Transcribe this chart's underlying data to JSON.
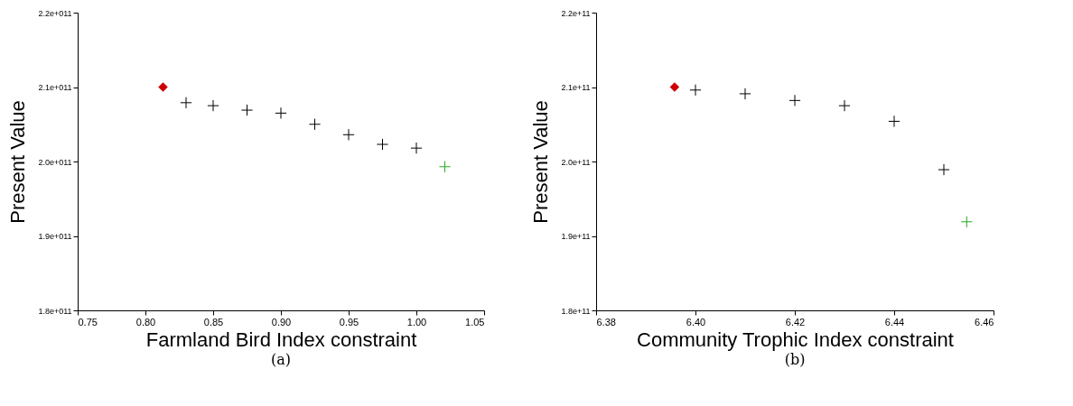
{
  "chart_data": [
    {
      "type": "scatter",
      "xlabel": "Farmland Bird Index constraint",
      "ylabel": "Present Value",
      "annotations": [
        "(a)"
      ],
      "grid": false,
      "xlim": [
        0.75,
        1.05
      ],
      "xticks": [
        {
          "value": 0.75,
          "label": "0.75"
        },
        {
          "value": 0.8,
          "label": "0.80"
        },
        {
          "value": 0.85,
          "label": "0.85"
        },
        {
          "value": 0.9,
          "label": "0.90"
        },
        {
          "value": 0.95,
          "label": "0.95"
        },
        {
          "value": 1.0,
          "label": "1.00"
        },
        {
          "value": 1.05,
          "label": "1.05"
        }
      ],
      "ylim": [
        180000000000,
        220000000000
      ],
      "yticks": [
        {
          "value": 180000000000,
          "label": "1.8e+011"
        },
        {
          "value": 190000000000,
          "label": "1.9e+011"
        },
        {
          "value": 200000000000,
          "label": "2.0e+011"
        },
        {
          "value": 210000000000,
          "label": "2.1e+011"
        },
        {
          "value": 220000000000,
          "label": "2.2e+011"
        }
      ],
      "series": [
        {
          "color": "#cc0000",
          "marker": "diamond",
          "x": [
            0.813
          ],
          "values": [
            210000000000
          ]
        },
        {
          "color": "#000000",
          "marker": "cross",
          "x": [
            0.83,
            0.85,
            0.875,
            0.9,
            0.925,
            0.95,
            0.975,
            1.0
          ],
          "values": [
            207900000000,
            207500000000,
            206900000000,
            206500000000,
            205000000000,
            203600000000,
            202300000000,
            201800000000
          ]
        },
        {
          "color": "#22aa22",
          "marker": "cross",
          "x": [
            1.021
          ],
          "values": [
            199300000000
          ]
        }
      ]
    },
    {
      "type": "scatter",
      "xlabel": "Community Trophic Index constraint",
      "ylabel": "Present Value",
      "annotations": [
        "(b)"
      ],
      "grid": false,
      "xlim": [
        6.38,
        6.46
      ],
      "xticks": [
        {
          "value": 6.38,
          "label": "6.38"
        },
        {
          "value": 6.4,
          "label": "6.40"
        },
        {
          "value": 6.42,
          "label": "6.42"
        },
        {
          "value": 6.44,
          "label": "6.44"
        },
        {
          "value": 6.46,
          "label": "6.46"
        }
      ],
      "ylim": [
        180000000000,
        220000000000
      ],
      "yticks": [
        {
          "value": 180000000000,
          "label": "1.8e+11"
        },
        {
          "value": 190000000000,
          "label": "1.9e+11"
        },
        {
          "value": 200000000000,
          "label": "2.0e+11"
        },
        {
          "value": 210000000000,
          "label": "2.1e+11"
        },
        {
          "value": 220000000000,
          "label": "2.2e+11"
        }
      ],
      "series": [
        {
          "color": "#cc0000",
          "marker": "diamond",
          "x": [
            6.3958
          ],
          "values": [
            210000000000
          ]
        },
        {
          "color": "#000000",
          "marker": "cross",
          "x": [
            6.4,
            6.41,
            6.42,
            6.43,
            6.44,
            6.45
          ],
          "values": [
            209600000000,
            209100000000,
            208200000000,
            207500000000,
            205400000000,
            198900000000
          ]
        },
        {
          "color": "#22aa22",
          "marker": "cross",
          "x": [
            6.4546
          ],
          "values": [
            191900000000
          ]
        }
      ]
    }
  ]
}
